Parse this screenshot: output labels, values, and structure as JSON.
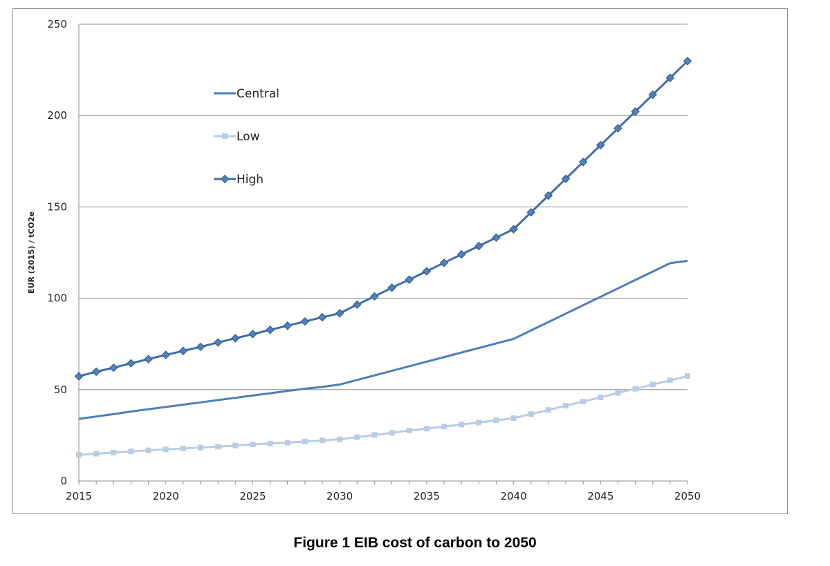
{
  "caption": "Figure 1 EIB cost of carbon to 2050",
  "chart_data": {
    "type": "line",
    "ylabel": "EUR (2015) / tCO2e",
    "xlabel": "",
    "title": "",
    "xlim": [
      2015,
      2050
    ],
    "ylim": [
      0,
      250
    ],
    "x_ticks": [
      2015,
      2020,
      2025,
      2030,
      2035,
      2040,
      2045,
      2050
    ],
    "y_ticks": [
      0,
      50,
      100,
      150,
      200,
      250
    ],
    "grid": "horizontal",
    "legend_position": "top-left",
    "x": [
      2015,
      2016,
      2017,
      2018,
      2019,
      2020,
      2021,
      2022,
      2023,
      2024,
      2025,
      2026,
      2027,
      2028,
      2029,
      2030,
      2031,
      2032,
      2033,
      2034,
      2035,
      2036,
      2037,
      2038,
      2039,
      2040,
      2041,
      2042,
      2043,
      2044,
      2045,
      2046,
      2047,
      2048,
      2049,
      2050
    ],
    "series": [
      {
        "name": "Central",
        "color": "#4a7ebb",
        "marker": "none",
        "values": [
          34,
          35.3,
          36.6,
          38,
          39.3,
          40.5,
          41.8,
          43,
          44.3,
          45.5,
          46.8,
          48,
          49.3,
          50.5,
          51.5,
          52.8,
          55.3,
          57.8,
          60.3,
          62.8,
          65.3,
          67.8,
          70.3,
          72.8,
          75.3,
          77.8,
          82.4,
          87,
          91.6,
          96.2,
          100.8,
          105.4,
          110,
          114.6,
          119.2,
          120.5
        ]
      },
      {
        "name": "Low",
        "color": "#b8cce4",
        "marker": "square",
        "values": [
          14.3,
          14.9,
          15.6,
          16.2,
          16.8,
          17.3,
          17.8,
          18.3,
          18.8,
          19.4,
          20,
          20.5,
          21,
          21.6,
          22.2,
          22.8,
          24,
          25.2,
          26.4,
          27.6,
          28.7,
          29.8,
          30.9,
          32,
          33.2,
          34.4,
          36.6,
          38.9,
          41.2,
          43.5,
          45.8,
          48.2,
          50.5,
          52.8,
          55.1,
          57.4
        ]
      },
      {
        "name": "High",
        "color": "#3f6ea8",
        "marker": "diamond",
        "values": [
          57.3,
          59.8,
          62,
          64.4,
          66.7,
          69,
          71.2,
          73.4,
          75.8,
          78.1,
          80.4,
          82.7,
          85,
          87.3,
          89.6,
          91.8,
          96.5,
          101,
          105.8,
          110.2,
          114.8,
          119.4,
          124,
          128.6,
          133.2,
          137.8,
          147,
          156.2,
          165.4,
          174.6,
          183.8,
          193,
          202.2,
          211.4,
          220.6,
          229.8
        ]
      }
    ]
  }
}
